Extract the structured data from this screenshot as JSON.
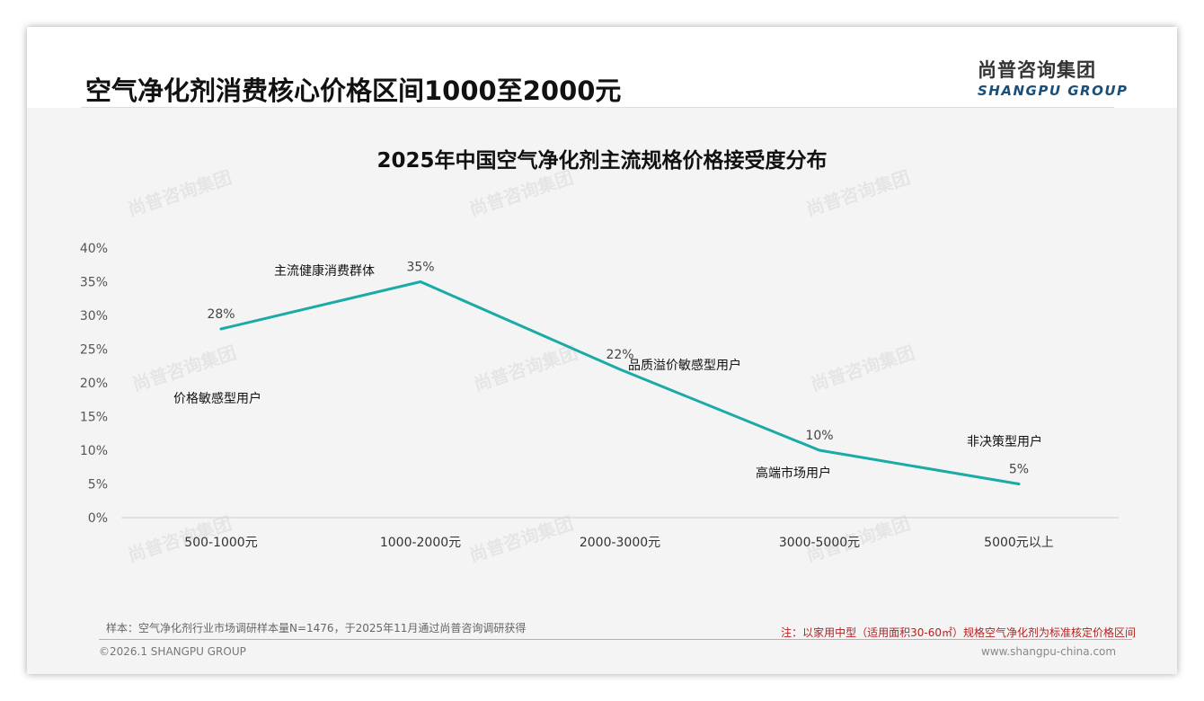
{
  "header": {
    "title": "空气净化剂消费核心价格区间1000至2000元",
    "logo_cn": "尚普咨询集团",
    "logo_en": "SHANGPU GROUP"
  },
  "chart_data": {
    "type": "line",
    "title": "2025年中国空气净化剂主流规格价格接受度分布",
    "categories": [
      "500-1000元",
      "1000-2000元",
      "2000-3000元",
      "3000-5000元",
      "5000元以上"
    ],
    "values": [
      28,
      35,
      22,
      10,
      5
    ],
    "data_labels": [
      "28%",
      "35%",
      "22%",
      "10%",
      "5%"
    ],
    "annotations": [
      "价格敏感型用户",
      "主流健康消费群体",
      "品质溢价敏感型用户",
      "高端市场用户",
      "非决策型用户"
    ],
    "yticks": [
      "0%",
      "5%",
      "10%",
      "15%",
      "20%",
      "25%",
      "30%",
      "35%",
      "40%"
    ],
    "ylim": [
      0,
      40
    ],
    "line_color": "#1aaba6",
    "grid": false
  },
  "footer": {
    "sample": "样本：空气净化剂行业市场调研样本量N=1476，于2025年11月通过尚普咨询调研获得",
    "note": "注：以家用中型（适用面积30-60㎡）规格空气净化剂为标准核定价格区间",
    "copyright": "©2026.1 SHANGPU GROUP",
    "url": "www.shangpu-china.com"
  }
}
